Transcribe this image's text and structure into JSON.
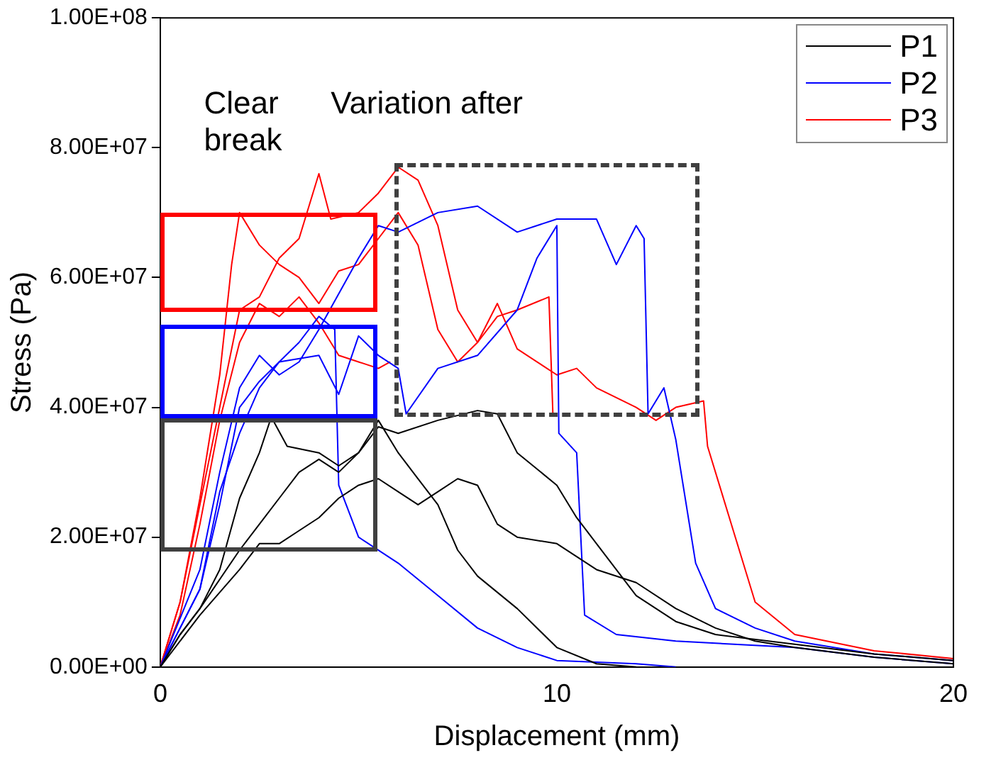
{
  "chart_data": {
    "type": "line",
    "xlabel": "Displacement (mm)",
    "ylabel": "Stress (Pa)",
    "xlim": [
      0,
      20
    ],
    "xticks": [
      0,
      10,
      20
    ],
    "ylim": [
      0,
      100000000
    ],
    "yticks": [
      {
        "value": 0,
        "label": "0.00E+00"
      },
      {
        "value": 20000000,
        "label": "2.00E+07"
      },
      {
        "value": 40000000,
        "label": "4.00E+07"
      },
      {
        "value": 60000000,
        "label": "6.00E+07"
      },
      {
        "value": 80000000,
        "label": "8.00E+07"
      },
      {
        "value": 100000000,
        "label": "1.00E+08"
      }
    ],
    "grid": false,
    "legend": "top right",
    "marker": "none",
    "line_style": "solid",
    "annotations": [
      "Clear break",
      "Variation after"
    ],
    "series": [
      {
        "name": "P1",
        "color": "#000000",
        "x": [
          0,
          0.5,
          1,
          1.5,
          2,
          2.5,
          2.8,
          3.2,
          4,
          4.5,
          5,
          5.5,
          6,
          7,
          8,
          8.5,
          9,
          10,
          10.5,
          11,
          12,
          13,
          14,
          16,
          18,
          20
        ],
        "values": [
          0,
          5000000,
          9000000,
          15000000,
          26000000,
          33000000,
          38500000,
          34000000,
          33000000,
          31000000,
          33000000,
          37000000,
          36000000,
          38000000,
          39500000,
          39000000,
          33000000,
          28000000,
          23000000,
          19000000,
          11000000,
          7000000,
          5000000,
          3500000,
          2000000,
          1000000
        ]
      },
      {
        "color": "#000000",
        "x": [
          0,
          0.5,
          1,
          2,
          2.5,
          3,
          3.5,
          4,
          4.5,
          5,
          5.5,
          6,
          6.5,
          7,
          7.5,
          8,
          9,
          10,
          11,
          12
        ],
        "values": [
          0,
          5000000,
          9000000,
          18000000,
          22000000,
          26000000,
          30000000,
          32000000,
          30000000,
          33000000,
          38000000,
          33000000,
          29000000,
          25000000,
          18000000,
          14000000,
          9000000,
          3000000,
          500000,
          0
        ]
      },
      {
        "color": "#000000",
        "x": [
          0,
          1,
          2,
          2.5,
          3,
          3.5,
          4,
          4.5,
          5,
          5.5,
          6,
          6.5,
          7,
          7.5,
          8,
          8.5,
          9,
          10,
          11,
          12,
          13,
          14,
          15,
          16,
          18,
          20
        ],
        "values": [
          0,
          8000000,
          15000000,
          19000000,
          19000000,
          21000000,
          23000000,
          26000000,
          28000000,
          29000000,
          27000000,
          25000000,
          27000000,
          29000000,
          28000000,
          22000000,
          20000000,
          19000000,
          15000000,
          13000000,
          9000000,
          6000000,
          4000000,
          3000000,
          1500000,
          500000
        ]
      },
      {
        "name": "P2",
        "color": "#0000ff",
        "x": [
          0,
          1,
          1.5,
          2,
          2.5,
          3,
          3.5,
          4,
          4.4,
          4.5,
          5,
          6,
          7,
          8,
          9,
          10,
          12,
          13
        ],
        "values": [
          0,
          12000000,
          27000000,
          36000000,
          43000000,
          47000000,
          50000000,
          54000000,
          52000000,
          28000000,
          20000000,
          16000000,
          11000000,
          6000000,
          3000000,
          1000000,
          500000,
          0
        ]
      },
      {
        "color": "#0000ff",
        "x": [
          0,
          1,
          1.5,
          2,
          2.5,
          3,
          3.5,
          4,
          5,
          5.5,
          6,
          7,
          8,
          9,
          10,
          11,
          11.5,
          12,
          12.2,
          12.3,
          12.7,
          13,
          13.5,
          14,
          15,
          16,
          18,
          20
        ],
        "values": [
          0,
          15000000,
          30000000,
          43000000,
          48000000,
          45000000,
          47000000,
          52000000,
          63000000,
          68000000,
          67000000,
          70000000,
          71000000,
          67000000,
          69000000,
          69000000,
          62000000,
          68000000,
          66000000,
          39000000,
          43000000,
          35000000,
          16000000,
          9000000,
          6000000,
          4000000,
          2000000,
          1000000
        ]
      },
      {
        "color": "#0000ff",
        "x": [
          0,
          1,
          1.5,
          2,
          2.5,
          3,
          4,
          4.5,
          5,
          5.5,
          6,
          6.2,
          7,
          8,
          9,
          9.5,
          10,
          10.05,
          10.5,
          10.7,
          11.5,
          13,
          16,
          18,
          20
        ],
        "values": [
          0,
          12000000,
          25000000,
          40000000,
          44000000,
          47000000,
          48000000,
          42000000,
          51000000,
          48000000,
          46000000,
          39000000,
          46000000,
          48000000,
          55000000,
          63000000,
          68000000,
          36000000,
          33000000,
          8000000,
          5000000,
          4000000,
          3000000,
          1500000,
          500000
        ]
      },
      {
        "name": "P3",
        "color": "#ff0000",
        "x": [
          0,
          0.5,
          1,
          1.5,
          1.8,
          2,
          2.5,
          3,
          3.5,
          4,
          4.5,
          5,
          5.5,
          6,
          6.5,
          7,
          7.5,
          8,
          8.5,
          9,
          9.8,
          9.9
        ],
        "values": [
          0,
          10000000,
          26000000,
          45000000,
          62000000,
          70000000,
          65000000,
          62000000,
          60000000,
          56000000,
          61000000,
          62000000,
          66000000,
          70000000,
          65000000,
          52000000,
          47000000,
          50000000,
          54000000,
          55000000,
          57000000,
          39000000
        ]
      },
      {
        "color": "#ff0000",
        "x": [
          0,
          0.5,
          1,
          1.5,
          2,
          2.5,
          3,
          3.5,
          4,
          4.3,
          5,
          5.5,
          6,
          6.5,
          7,
          7.5,
          8,
          8.5,
          9,
          10,
          10.5,
          11,
          12,
          12.5,
          13,
          13.7,
          13.8,
          14.5,
          15,
          16,
          18,
          20
        ],
        "values": [
          0,
          10000000,
          25000000,
          40000000,
          55000000,
          57000000,
          63000000,
          66000000,
          76000000,
          69000000,
          70000000,
          73000000,
          77000000,
          75000000,
          68000000,
          55000000,
          50000000,
          56000000,
          49000000,
          45000000,
          46000000,
          43000000,
          40000000,
          38000000,
          40000000,
          41000000,
          34000000,
          20000000,
          10000000,
          5000000,
          2500000,
          1300000
        ]
      },
      {
        "color": "#ff0000",
        "x": [
          0,
          0.5,
          1,
          1.5,
          2,
          2.5,
          3,
          3.5,
          4,
          4.5,
          5,
          5.5,
          5.8
        ],
        "values": [
          0,
          8000000,
          22000000,
          38000000,
          50000000,
          56000000,
          54000000,
          57000000,
          53000000,
          48000000,
          47000000,
          46000000,
          47000000
        ]
      }
    ]
  }
}
